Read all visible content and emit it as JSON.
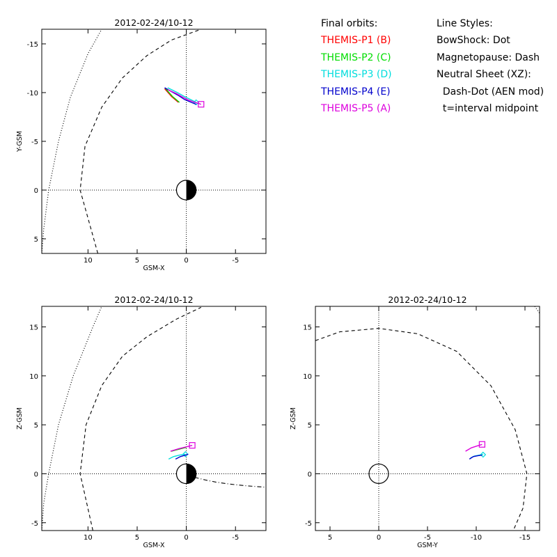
{
  "legend": {
    "heading": "Final orbits:",
    "entries": [
      {
        "label": "THEMIS-P1 (B)",
        "color": "#ff0000"
      },
      {
        "label": "THEMIS-P2 (C)",
        "color": "#00dd00"
      },
      {
        "label": "THEMIS-P3 (D)",
        "color": "#00dddd"
      },
      {
        "label": "THEMIS-P4 (E)",
        "color": "#0000cc"
      },
      {
        "label": "THEMIS-P5 (A)",
        "color": "#dd00dd"
      }
    ],
    "styles_heading": "Line Styles:",
    "styles": [
      "BowShock: Dot",
      "Magnetopause: Dash",
      "Neutral Sheet (XZ):",
      "  Dash-Dot (AEN mod)",
      "  t=interval midpoint"
    ]
  },
  "chart_data": [
    {
      "id": "xy",
      "type": "line",
      "title": "2012-02-24/10-12",
      "xlabel": "GSM-X",
      "ylabel": "Y-GSM",
      "xlim": [
        14.7,
        -8.1
      ],
      "ylim": [
        6.5,
        -16.5
      ],
      "xticks": [
        10,
        5,
        0,
        -5
      ],
      "yticks": [
        5,
        0,
        -5,
        -10,
        -15
      ],
      "earth": "day-night",
      "bow_shock": {
        "x": [
          14.7,
          14.5,
          14.0,
          13.0,
          11.8,
          10.0,
          8.6
        ],
        "y": [
          6.5,
          4.0,
          0.0,
          -5.0,
          -9.5,
          -14.0,
          -16.5
        ]
      },
      "magnetopause": {
        "x": [
          9.0,
          10.8,
          10.3,
          8.6,
          6.5,
          4.0,
          1.5,
          -1.5
        ],
        "y": [
          6.5,
          0.0,
          -4.5,
          -8.5,
          -11.5,
          -13.8,
          -15.4,
          -16.5
        ]
      },
      "orbits": [
        {
          "name": "THEMIS-P1",
          "x": [
            2.2,
            1.5,
            0.8
          ],
          "y": [
            -10.4,
            -9.6,
            -9.0
          ]
        },
        {
          "name": "THEMIS-P2",
          "x": [
            2.1,
            1.4,
            0.7
          ],
          "y": [
            -10.4,
            -9.6,
            -9.0
          ]
        },
        {
          "name": "THEMIS-P3",
          "x": [
            1.9,
            0.9,
            0.2,
            -0.4,
            -1.0
          ],
          "y": [
            -10.5,
            -10.0,
            -9.6,
            -9.3,
            -9.0
          ],
          "marker": "diamond"
        },
        {
          "name": "THEMIS-P4",
          "x": [
            2.2,
            1.5,
            0.8,
            0.2,
            -0.5,
            -1.0
          ],
          "y": [
            -10.5,
            -10.1,
            -9.7,
            -9.3,
            -9.0,
            -8.8
          ]
        },
        {
          "name": "THEMIS-P5",
          "x": [
            1.9,
            1.0,
            0.3,
            -0.3,
            -0.9,
            -1.5
          ],
          "y": [
            -10.3,
            -9.9,
            -9.5,
            -9.2,
            -9.0,
            -8.8
          ],
          "marker": "square"
        }
      ]
    },
    {
      "id": "xz",
      "type": "line",
      "title": "2012-02-24/10-12",
      "xlabel": "GSM-X",
      "ylabel": "Z-GSM",
      "xlim": [
        14.7,
        -8.1
      ],
      "ylim": [
        -5.8,
        17.1
      ],
      "xticks": [
        10,
        5,
        0,
        -5
      ],
      "yticks": [
        -5,
        0,
        5,
        10,
        15
      ],
      "earth": "day-night",
      "bow_shock": {
        "x": [
          14.7,
          14.5,
          14.0,
          13.0,
          11.5,
          9.5,
          8.6
        ],
        "y": [
          -5.8,
          -3.0,
          0.0,
          5.0,
          10.0,
          15.0,
          17.1
        ]
      },
      "magnetopause": {
        "x": [
          9.5,
          10.8,
          10.2,
          8.6,
          6.5,
          4.0,
          1.0,
          -1.5
        ],
        "y": [
          -5.8,
          0.0,
          5.0,
          9.0,
          12.0,
          14.0,
          15.8,
          17.0
        ]
      },
      "neutral_sheet": {
        "x": [
          0.0,
          -1.0,
          -2.0,
          -3.0,
          -4.0,
          -5.0,
          -6.0,
          -7.0,
          -8.1
        ],
        "y": [
          0.0,
          -0.4,
          -0.65,
          -0.85,
          -1.0,
          -1.12,
          -1.22,
          -1.3,
          -1.38
        ]
      },
      "orbits": [
        {
          "name": "THEMIS-P1",
          "x": [
            1.6,
            0.8,
            0.0
          ],
          "y": [
            2.3,
            2.5,
            2.7
          ]
        },
        {
          "name": "THEMIS-P2",
          "x": [
            1.5,
            0.8,
            0.0
          ],
          "y": [
            2.3,
            2.5,
            2.7
          ]
        },
        {
          "name": "THEMIS-P3",
          "x": [
            1.8,
            1.3,
            0.7,
            0.1
          ],
          "y": [
            1.5,
            1.75,
            1.9,
            2.0
          ],
          "marker": "diamond"
        },
        {
          "name": "THEMIS-P4",
          "x": [
            1.1,
            0.6,
            0.1,
            -0.2
          ],
          "y": [
            1.5,
            1.75,
            1.9,
            2.0
          ]
        },
        {
          "name": "THEMIS-P5",
          "x": [
            1.6,
            0.8,
            0.0,
            -0.6
          ],
          "y": [
            2.3,
            2.55,
            2.75,
            2.9
          ],
          "marker": "square"
        }
      ]
    },
    {
      "id": "yz",
      "type": "line",
      "title": "2012-02-24/10-12",
      "xlabel": "GSM-Y",
      "ylabel": "Z-GSM",
      "xlim": [
        6.5,
        -16.5
      ],
      "ylim": [
        -5.8,
        17.1
      ],
      "xticks": [
        5,
        0,
        -5,
        -10,
        -15
      ],
      "yticks": [
        -5,
        0,
        5,
        10,
        15
      ],
      "earth": "circle",
      "bow_shock": {
        "x": [
          -16.0,
          -16.5
        ],
        "y": [
          17.1,
          16.4
        ]
      },
      "magnetopause": {
        "x": [
          6.5,
          4.0,
          0.0,
          -4.0,
          -8.0,
          -11.5,
          -14.0,
          -15.2,
          -14.8,
          -13.8
        ],
        "y": [
          13.6,
          14.5,
          14.85,
          14.3,
          12.5,
          9.0,
          4.5,
          0.0,
          -3.5,
          -5.8
        ]
      },
      "orbits": [
        {
          "name": "THEMIS-P3",
          "x": [
            -9.4,
            -9.8,
            -10.3,
            -10.7
          ],
          "y": [
            1.6,
            1.8,
            1.9,
            1.95
          ],
          "marker": "diamond"
        },
        {
          "name": "THEMIS-P4",
          "x": [
            -9.3,
            -9.7,
            -10.2,
            -10.6
          ],
          "y": [
            1.5,
            1.75,
            1.85,
            1.9
          ]
        },
        {
          "name": "THEMIS-P5",
          "x": [
            -8.9,
            -9.5,
            -10.1,
            -10.6
          ],
          "y": [
            2.3,
            2.65,
            2.85,
            3.0
          ],
          "marker": "square"
        }
      ]
    }
  ]
}
